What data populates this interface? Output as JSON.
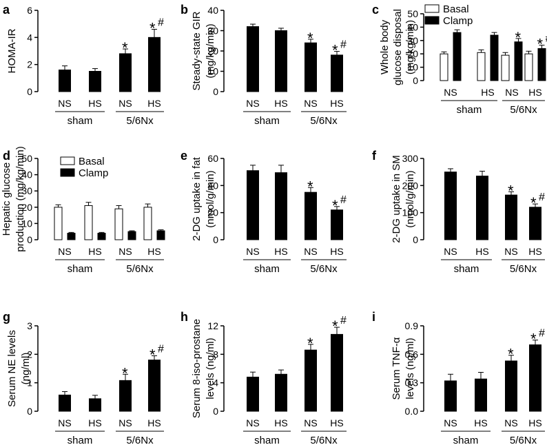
{
  "figure": {
    "panels": [
      {
        "letter": "a",
        "ylabel": [
          "HOMA-IR"
        ],
        "legend": null,
        "conditions": [
          "NS",
          "HS",
          "NS",
          "HS"
        ],
        "groups": [
          "sham",
          "5/6Nx"
        ]
      },
      {
        "letter": "b",
        "ylabel": [
          "Steady-state GIR",
          "(mg/kg/min)"
        ],
        "legend": null,
        "conditions": [
          "NS",
          "HS",
          "NS",
          "HS"
        ],
        "groups": [
          "sham",
          "5/6Nx"
        ]
      },
      {
        "letter": "c",
        "ylabel": [
          "Whole body",
          "glucose disposal",
          "(mg/kg/min)"
        ],
        "legend": [
          "Basal",
          "Clamp"
        ],
        "conditions": [
          "NS",
          "HS",
          "NS",
          "HS"
        ],
        "groups": [
          "sham",
          "5/6Nx"
        ]
      },
      {
        "letter": "d",
        "ylabel": [
          "Hepatic glucose",
          "production (mg/kg/min)"
        ],
        "legend": [
          "Basal",
          "Clamp"
        ],
        "conditions": [
          "NS",
          "HS",
          "NS",
          "HS"
        ],
        "groups": [
          "sham",
          "5/6Nx"
        ]
      },
      {
        "letter": "e",
        "ylabel": [
          "2-DG uptake in fat",
          "(nmol/g/min)"
        ],
        "legend": null,
        "conditions": [
          "NS",
          "HS",
          "NS",
          "HS"
        ],
        "groups": [
          "sham",
          "5/6Nx"
        ]
      },
      {
        "letter": "f",
        "ylabel": [
          "2-DG uptake in SM",
          "(nmol/g/min)"
        ],
        "legend": null,
        "conditions": [
          "NS",
          "HS",
          "NS",
          "HS"
        ],
        "groups": [
          "sham",
          "5/6Nx"
        ]
      },
      {
        "letter": "g",
        "ylabel": [
          "Serum NE levels",
          "(ng/ml)"
        ],
        "legend": null,
        "conditions": [
          "NS",
          "HS",
          "NS",
          "HS"
        ],
        "groups": [
          "sham",
          "5/6Nx"
        ]
      },
      {
        "letter": "h",
        "ylabel": [
          "Serum 8-iso-prostane",
          "levels (ng/ml)"
        ],
        "legend": null,
        "conditions": [
          "NS",
          "HS",
          "NS",
          "HS"
        ],
        "groups": [
          "sham",
          "5/6Nx"
        ]
      },
      {
        "letter": "i",
        "ylabel": [
          "Serum TNF-α",
          "levels  (ng/ml)"
        ],
        "legend": null,
        "conditions": [
          "NS",
          "HS",
          "NS",
          "HS"
        ],
        "groups": [
          "sham",
          "5/6Nx"
        ]
      }
    ]
  },
  "chart_data": [
    {
      "type": "bar",
      "panel": "a",
      "title": "",
      "categories": [
        "sham NS",
        "sham HS",
        "5/6Nx NS",
        "5/6Nx HS"
      ],
      "series": [
        {
          "name": "HOMA-IR",
          "values": [
            1.6,
            1.5,
            2.8,
            4.0
          ],
          "errors": [
            0.3,
            0.2,
            0.35,
            0.6
          ]
        }
      ],
      "markers": [
        "",
        "",
        "*",
        "*#"
      ],
      "ylim": [
        0,
        6
      ],
      "yticks": [
        0,
        2,
        4,
        6
      ],
      "ylabel": "HOMA-IR",
      "xlabel": ""
    },
    {
      "type": "bar",
      "panel": "b",
      "title": "",
      "categories": [
        "sham NS",
        "sham HS",
        "5/6Nx NS",
        "5/6Nx HS"
      ],
      "series": [
        {
          "name": "Steady-state GIR",
          "values": [
            32,
            30,
            24,
            18
          ],
          "errors": [
            1.2,
            1.2,
            1.8,
            1.8
          ]
        }
      ],
      "markers": [
        "",
        "",
        "*",
        "*#"
      ],
      "ylim": [
        0,
        40
      ],
      "yticks": [
        0,
        10,
        20,
        30,
        40
      ],
      "ylabel": "Steady-state GIR (mg/kg/min)",
      "xlabel": ""
    },
    {
      "type": "bar",
      "panel": "c",
      "title": "",
      "categories": [
        "sham NS",
        "sham HS",
        "5/6Nx NS",
        "5/6Nx HS"
      ],
      "series": [
        {
          "name": "Basal",
          "values": [
            20,
            21,
            19,
            20
          ],
          "errors": [
            1.5,
            2,
            2,
            2
          ]
        },
        {
          "name": "Clamp",
          "values": [
            36,
            34,
            29,
            24
          ],
          "errors": [
            2,
            2,
            2.5,
            2.5
          ]
        }
      ],
      "markers": [
        "",
        "",
        "*",
        "*#"
      ],
      "ylim": [
        0,
        50
      ],
      "yticks": [
        0,
        10,
        20,
        30,
        40,
        50
      ],
      "ylabel": "Whole body glucose disposal (mg/kg/min)",
      "xlabel": ""
    },
    {
      "type": "bar",
      "panel": "d",
      "title": "",
      "categories": [
        "sham NS",
        "sham HS",
        "5/6Nx NS",
        "5/6Nx HS"
      ],
      "series": [
        {
          "name": "Basal",
          "values": [
            20,
            21,
            19,
            20
          ],
          "errors": [
            1.5,
            2,
            2,
            2
          ]
        },
        {
          "name": "Clamp",
          "values": [
            4,
            4,
            5,
            5.5
          ],
          "errors": [
            0.5,
            0.5,
            0.5,
            0.6
          ]
        }
      ],
      "markers": [
        "",
        "",
        "",
        ""
      ],
      "ylim": [
        0,
        50
      ],
      "yticks": [
        0,
        10,
        20,
        30,
        40,
        50
      ],
      "ylabel": "Hepatic glucose production (mg/kg/min)",
      "xlabel": ""
    },
    {
      "type": "bar",
      "panel": "e",
      "title": "",
      "categories": [
        "sham NS",
        "sham HS",
        "5/6Nx NS",
        "5/6Nx HS"
      ],
      "series": [
        {
          "name": "2-DG uptake in fat",
          "values": [
            51,
            49.5,
            35,
            22
          ],
          "errors": [
            4,
            5.5,
            3.5,
            2.5
          ]
        }
      ],
      "markers": [
        "",
        "",
        "*",
        "*#"
      ],
      "ylim": [
        0,
        60
      ],
      "yticks": [
        0,
        20,
        40,
        60
      ],
      "ylabel": "2-DG uptake in fat (nmol/g/min)",
      "xlabel": ""
    },
    {
      "type": "bar",
      "panel": "f",
      "title": "",
      "categories": [
        "sham NS",
        "sham HS",
        "5/6Nx NS",
        "5/6Nx HS"
      ],
      "series": [
        {
          "name": "2-DG uptake in SM",
          "values": [
            250,
            235,
            165,
            120
          ],
          "errors": [
            12,
            18,
            12,
            12
          ]
        }
      ],
      "markers": [
        "",
        "",
        "*",
        "*#"
      ],
      "ylim": [
        0,
        300
      ],
      "yticks": [
        0,
        100,
        200,
        300
      ],
      "ylabel": "2-DG uptake in SM (nmol/g/min)",
      "xlabel": ""
    },
    {
      "type": "bar",
      "panel": "g",
      "title": "",
      "categories": [
        "sham NS",
        "sham HS",
        "5/6Nx NS",
        "5/6Nx HS"
      ],
      "series": [
        {
          "name": "Serum NE levels",
          "values": [
            0.57,
            0.44,
            1.08,
            1.8
          ],
          "errors": [
            0.12,
            0.12,
            0.22,
            0.15
          ]
        }
      ],
      "markers": [
        "",
        "",
        "*",
        "*#"
      ],
      "ylim": [
        0,
        3
      ],
      "yticks": [
        0,
        1,
        2,
        3
      ],
      "ylabel": "Serum NE levels (ng/ml)",
      "xlabel": ""
    },
    {
      "type": "bar",
      "panel": "h",
      "title": "",
      "categories": [
        "sham NS",
        "sham HS",
        "5/6Nx NS",
        "5/6Nx HS"
      ],
      "series": [
        {
          "name": "Serum 8-iso-prostane",
          "values": [
            4.8,
            5.2,
            8.6,
            10.8
          ],
          "errors": [
            0.7,
            0.6,
            0.8,
            1.0
          ]
        }
      ],
      "markers": [
        "",
        "",
        "*",
        "*#"
      ],
      "ylim": [
        0,
        12
      ],
      "yticks": [
        0,
        4,
        8,
        12
      ],
      "ylabel": "Serum 8-iso-prostane levels (ng/ml)",
      "xlabel": ""
    },
    {
      "type": "bar",
      "panel": "i",
      "title": "",
      "categories": [
        "sham NS",
        "sham HS",
        "5/6Nx NS",
        "5/6Nx HS"
      ],
      "series": [
        {
          "name": "Serum TNF-α",
          "values": [
            0.32,
            0.34,
            0.53,
            0.7
          ],
          "errors": [
            0.07,
            0.07,
            0.06,
            0.05
          ]
        }
      ],
      "markers": [
        "",
        "",
        "*",
        "*#"
      ],
      "ylim": [
        0,
        0.9
      ],
      "yticks": [
        0,
        0.3,
        0.6,
        0.9
      ],
      "ytick_labels": [
        "0.0",
        "0.3",
        "0.6",
        "0.9"
      ],
      "ylabel": "Serum TNF-α levels (ng/ml)",
      "xlabel": ""
    }
  ]
}
